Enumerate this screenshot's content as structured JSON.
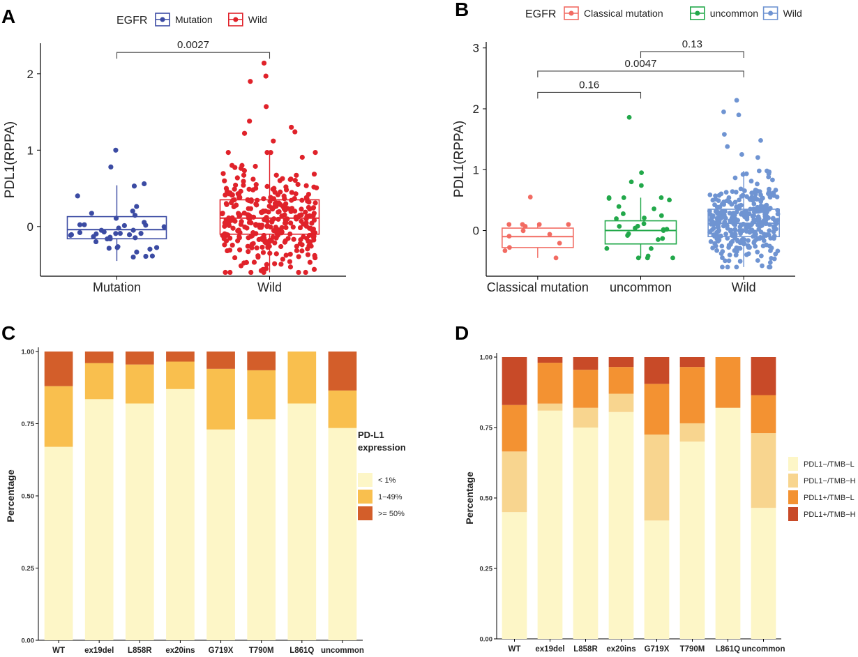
{
  "colors": {
    "mutation": "#3b4ba3",
    "wild_red": "#e0222a",
    "classical": "#f26b62",
    "uncommon": "#22a84a",
    "wild_blue": "#6f94d2",
    "lt1": "#fdf6c7",
    "p1_49": "#f9bf4e",
    "ge50": "#d35e2a",
    "d_pm_tl": "#fdf6c7",
    "d_pm_th": "#f8d58f",
    "d_pp_tl": "#f39232",
    "d_pp_th": "#c84a28"
  },
  "panels": {
    "A": {
      "label": "A"
    },
    "B": {
      "label": "B"
    },
    "C": {
      "label": "C"
    },
    "D": {
      "label": "D"
    }
  },
  "chart_data": [
    {
      "panel": "A",
      "type": "box+scatter",
      "legend_title": "EGFR",
      "legend_position": "top",
      "legend": [
        "Mutation",
        "Wild"
      ],
      "ylabel": "PDL1(RPPA)",
      "xlabel": "",
      "ylim": [
        -0.65,
        2.4
      ],
      "yticks": [
        0,
        1,
        2
      ],
      "categories": [
        "Mutation",
        "Wild"
      ],
      "boxes": [
        {
          "name": "Mutation",
          "q1": -0.16,
          "median": -0.04,
          "q3": 0.13,
          "whisker_low": -0.45,
          "whisker_high": 0.54,
          "n_points": 40
        },
        {
          "name": "Wild",
          "q1": -0.1,
          "median": 0.11,
          "q3": 0.35,
          "whisker_low": -0.6,
          "whisker_high": 0.97,
          "n_points": 330
        }
      ],
      "outliers": [
        {
          "group": "Mutation",
          "y": 1.0
        },
        {
          "group": "Mutation",
          "y": 0.78
        },
        {
          "group": "Mutation",
          "y": 0.56
        },
        {
          "group": "Mutation",
          "y": 0.53
        },
        {
          "group": "Wild",
          "y": 2.14
        },
        {
          "group": "Wild",
          "y": 1.97
        },
        {
          "group": "Wild",
          "y": 1.9
        },
        {
          "group": "Wild",
          "y": 1.57
        },
        {
          "group": "Wild",
          "y": 1.38
        },
        {
          "group": "Wild",
          "y": 1.3
        },
        {
          "group": "Wild",
          "y": 1.24
        },
        {
          "group": "Wild",
          "y": 1.22
        },
        {
          "group": "Wild",
          "y": 1.12
        }
      ],
      "comparisons": [
        {
          "from": "Mutation",
          "to": "Wild",
          "label": "0.0027",
          "y": 2.28
        }
      ]
    },
    {
      "panel": "B",
      "type": "box+scatter",
      "legend_title": "EGFR",
      "legend_position": "top",
      "legend": [
        "Classical mutation",
        "uncommon",
        "Wild"
      ],
      "ylabel": "PDL1(RPPA)",
      "xlabel": "",
      "ylim": [
        -0.75,
        3.1
      ],
      "yticks": [
        0,
        1,
        2,
        3
      ],
      "categories": [
        "Classical mutation",
        "uncommon",
        "Wild"
      ],
      "boxes": [
        {
          "name": "Classical mutation",
          "q1": -0.28,
          "median": -0.1,
          "q3": 0.04,
          "whisker_low": -0.45,
          "whisker_high": 0.1,
          "n_points": 12
        },
        {
          "name": "uncommon",
          "q1": -0.22,
          "median": 0.0,
          "q3": 0.16,
          "whisker_low": -0.45,
          "whisker_high": 0.54,
          "n_points": 28
        },
        {
          "name": "Wild",
          "q1": -0.1,
          "median": 0.12,
          "q3": 0.35,
          "whisker_low": -0.6,
          "whisker_high": 0.98,
          "n_points": 330
        }
      ],
      "outliers": [
        {
          "group": "Classical mutation",
          "y": 0.55
        },
        {
          "group": "uncommon",
          "y": 1.86
        },
        {
          "group": "uncommon",
          "y": 0.95
        },
        {
          "group": "uncommon",
          "y": 0.8
        },
        {
          "group": "uncommon",
          "y": 0.74
        },
        {
          "group": "Wild",
          "y": 2.14
        },
        {
          "group": "Wild",
          "y": 1.95
        },
        {
          "group": "Wild",
          "y": 1.9
        },
        {
          "group": "Wild",
          "y": 1.58
        },
        {
          "group": "Wild",
          "y": 1.48
        },
        {
          "group": "Wild",
          "y": 1.38
        },
        {
          "group": "Wild",
          "y": 1.25
        },
        {
          "group": "Wild",
          "y": 1.2
        }
      ],
      "comparisons": [
        {
          "from": "uncommon",
          "to": "Wild",
          "label": "0.13",
          "y": 2.94
        },
        {
          "from": "Classical mutation",
          "to": "Wild",
          "label": "0.0047",
          "y": 2.62
        },
        {
          "from": "Classical mutation",
          "to": "uncommon",
          "label": "0.16",
          "y": 2.27
        }
      ]
    },
    {
      "panel": "C",
      "type": "stacked-bar",
      "ylabel": "Percentage",
      "xlabel": "",
      "ylim": [
        0,
        1
      ],
      "yticks": [
        "0.00",
        "0.25",
        "0.50",
        "0.75",
        "1.00"
      ],
      "categories": [
        "WT",
        "ex19del",
        "L858R",
        "ex20ins",
        "G719X",
        "T790M",
        "L861Q",
        "uncommon"
      ],
      "legend_title": "PD-L1\nexpression",
      "legend_title_lines": [
        "PD-L1",
        "expression"
      ],
      "legend_position": "right",
      "series": [
        {
          "name": "< 1%",
          "color_key": "lt1",
          "values": [
            0.67,
            0.835,
            0.82,
            0.87,
            0.73,
            0.765,
            0.82,
            0.735
          ]
        },
        {
          "name": "1−49%",
          "color_key": "p1_49",
          "values": [
            0.21,
            0.125,
            0.135,
            0.095,
            0.21,
            0.17,
            0.18,
            0.13
          ]
        },
        {
          "name": ">= 50%",
          "color_key": "ge50",
          "values": [
            0.12,
            0.04,
            0.045,
            0.035,
            0.06,
            0.065,
            0.0,
            0.135
          ]
        }
      ]
    },
    {
      "panel": "D",
      "type": "stacked-bar",
      "ylabel": "Percentage",
      "xlabel": "",
      "ylim": [
        0,
        1
      ],
      "yticks": [
        "0.00",
        "0.25",
        "0.50",
        "0.75",
        "1.00"
      ],
      "categories": [
        "WT",
        "ex19del",
        "L858R",
        "ex20ins",
        "G719X",
        "T790M",
        "L861Q",
        "uncommon"
      ],
      "legend_position": "right",
      "series": [
        {
          "name": "PDL1−/TMB−L",
          "color_key": "d_pm_tl",
          "values": [
            0.45,
            0.81,
            0.75,
            0.805,
            0.42,
            0.7,
            0.82,
            0.465
          ]
        },
        {
          "name": "PDL1−/TMB−H",
          "color_key": "d_pm_th",
          "values": [
            0.215,
            0.025,
            0.07,
            0.065,
            0.305,
            0.065,
            0.0,
            0.265
          ]
        },
        {
          "name": "PDL1+/TMB−L",
          "color_key": "d_pp_tl",
          "values": [
            0.165,
            0.145,
            0.135,
            0.095,
            0.18,
            0.2,
            0.18,
            0.135
          ]
        },
        {
          "name": "PDL1+/TMB−H",
          "color_key": "d_pp_th",
          "values": [
            0.17,
            0.02,
            0.045,
            0.035,
            0.095,
            0.035,
            0.0,
            0.135
          ]
        }
      ]
    }
  ]
}
